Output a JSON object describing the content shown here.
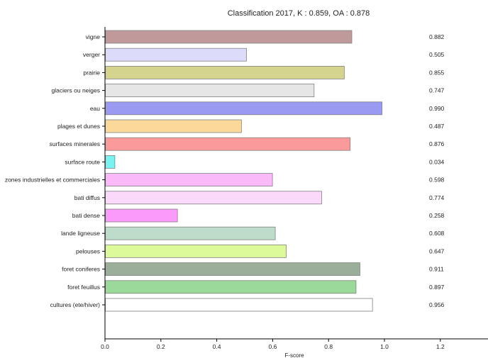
{
  "chart_data": {
    "type": "bar",
    "orientation": "horizontal",
    "title": "Classification 2017, K : 0.859, OA : 0.878",
    "xlabel": "F-score",
    "ylabel": "",
    "xlim": [
      0,
      1.4
    ],
    "xticks": [
      "0.0",
      "0.2",
      "0.4",
      "0.6",
      "0.8",
      "1.0",
      "1.2"
    ],
    "grid": false,
    "legend": "none",
    "bars": [
      {
        "category": "vigne",
        "value": 0.882,
        "label": "0.882",
        "color": "#c09a9a"
      },
      {
        "category": "verger",
        "value": 0.505,
        "label": "0.505",
        "color": "#dcdcfa"
      },
      {
        "category": "prairie",
        "value": 0.855,
        "label": "0.855",
        "color": "#d4d48e"
      },
      {
        "category": "glaciers ou neiges",
        "value": 0.747,
        "label": "0.747",
        "color": "#e6e6e6"
      },
      {
        "category": "eau",
        "value": 0.99,
        "label": "0.990",
        "color": "#9a9af2"
      },
      {
        "category": "plages et dunes",
        "value": 0.487,
        "label": "0.487",
        "color": "#fad99a"
      },
      {
        "category": "surfaces minerales",
        "value": 0.876,
        "label": "0.876",
        "color": "#fa9a9a"
      },
      {
        "category": "surface route",
        "value": 0.034,
        "label": "0.034",
        "color": "#7af2f2"
      },
      {
        "category": "zones industrielles et commerciales",
        "value": 0.598,
        "label": "0.598",
        "color": "#fabafa"
      },
      {
        "category": "bati diffus",
        "value": 0.774,
        "label": "0.774",
        "color": "#fad9fa"
      },
      {
        "category": "bati dense",
        "value": 0.258,
        "label": "0.258",
        "color": "#fa9afa"
      },
      {
        "category": "lande ligneuse",
        "value": 0.608,
        "label": "0.608",
        "color": "#bedcca"
      },
      {
        "category": "pelouses",
        "value": 0.647,
        "label": "0.647",
        "color": "#dcfa9a"
      },
      {
        "category": "foret coniferes",
        "value": 0.911,
        "label": "0.911",
        "color": "#9aae9a"
      },
      {
        "category": "foret feuillus",
        "value": 0.897,
        "label": "0.897",
        "color": "#9ad99a"
      },
      {
        "category": "cultures (ete/hiver)",
        "value": 0.956,
        "label": "0.956",
        "color": "#ffffff"
      }
    ]
  }
}
